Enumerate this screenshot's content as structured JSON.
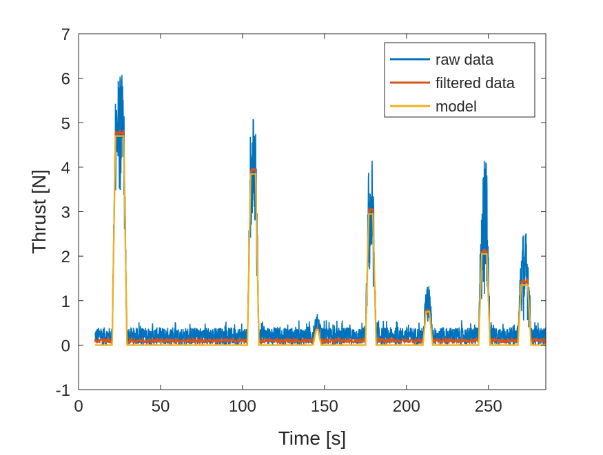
{
  "chart_data": {
    "type": "line",
    "xlabel": "Time [s]",
    "ylabel": "Thrust [N]",
    "xlim": [
      0,
      285
    ],
    "ylim": [
      -1,
      7
    ],
    "xticks": [
      0,
      50,
      100,
      150,
      200,
      250
    ],
    "yticks": [
      -1,
      0,
      1,
      2,
      3,
      4,
      5,
      6,
      7
    ],
    "grid": false,
    "legend_position": "top-right",
    "pulses": [
      {
        "t_start": 20.5,
        "t_end": 29.5,
        "level": 4.7,
        "raw_low": 3.4,
        "raw_high": 6.1
      },
      {
        "t_start": 103,
        "t_end": 110,
        "level": 3.85,
        "raw_low": 2.5,
        "raw_high": 5.2
      },
      {
        "t_start": 143,
        "t_end": 148,
        "level": 0.35,
        "raw_low": 0.25,
        "raw_high": 0.7
      },
      {
        "t_start": 175,
        "t_end": 181.5,
        "level": 2.95,
        "raw_low": 1.5,
        "raw_high": 4.25
      },
      {
        "t_start": 210,
        "t_end": 216,
        "level": 0.75,
        "raw_low": 0.5,
        "raw_high": 1.35
      },
      {
        "t_start": 244,
        "t_end": 251,
        "level": 2.05,
        "raw_low": 1.0,
        "raw_high": 4.2
      },
      {
        "t_start": 268,
        "t_end": 276,
        "level": 1.35,
        "raw_low": 0.55,
        "raw_high": 2.6
      }
    ],
    "baseline": {
      "model": 0.0,
      "filtered": 0.1,
      "raw_low": 0.0,
      "raw_high": 0.4
    },
    "series": [
      {
        "name": "raw data",
        "color": "#0072BD"
      },
      {
        "name": "filtered data",
        "color": "#D95319"
      },
      {
        "name": "model",
        "color": "#EDB120"
      }
    ]
  }
}
